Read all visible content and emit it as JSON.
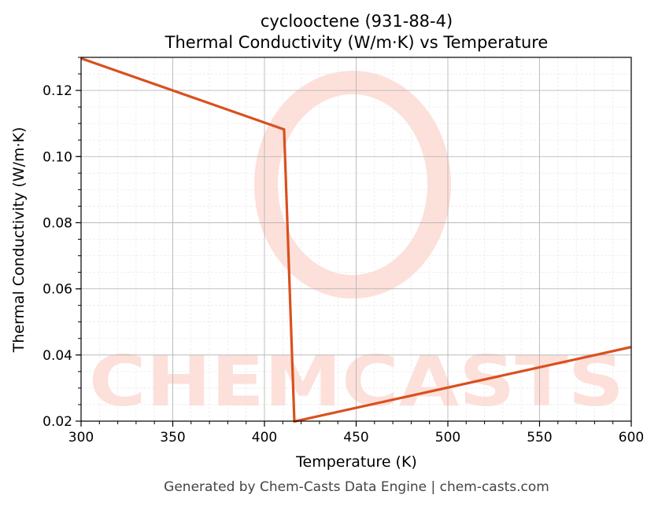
{
  "chart_data": {
    "type": "line",
    "title": "cyclooctene (931-88-4)",
    "subtitle": "Thermal Conductivity (W/m·K) vs Temperature",
    "xlabel": "Temperature (K)",
    "ylabel": "Thermal Conductivity (W/m·K)",
    "xlim": [
      300,
      600
    ],
    "ylim": [
      0.02,
      0.13
    ],
    "xticks": [
      300,
      350,
      400,
      450,
      500,
      550,
      600
    ],
    "xtick_labels": [
      "300",
      "350",
      "400",
      "450",
      "500",
      "550",
      "600"
    ],
    "yticks": [
      0.02,
      0.04,
      0.06,
      0.08,
      0.1,
      0.12
    ],
    "ytick_labels": [
      "0.02",
      "0.04",
      "0.06",
      "0.08",
      "0.10",
      "0.12"
    ],
    "grid": true,
    "series": [
      {
        "color": "#d9501e",
        "x": [
          300,
          410.7,
          416.3,
          600
        ],
        "y": [
          0.1297,
          0.1082,
          0.0199,
          0.0424
        ]
      }
    ],
    "watermark": "CHEMCASTS",
    "watermark_color": "#fbd5cc"
  },
  "footer": "Generated by Chem-Casts Data Engine | chem-casts.com"
}
